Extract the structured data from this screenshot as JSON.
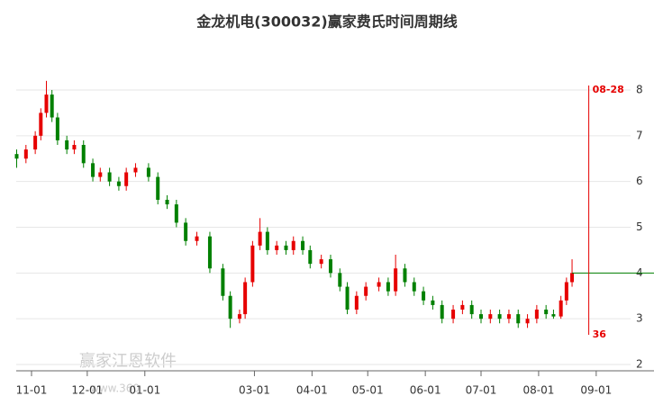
{
  "chart_data": {
    "type": "candlestick",
    "title": "金龙机电(300032)赢家费氏时间周期线",
    "x": [
      "10-24",
      "10-29",
      "11-03",
      "11-06",
      "11-09",
      "11-12",
      "11-15",
      "11-20",
      "11-24",
      "11-29",
      "12-04",
      "12-08",
      "12-13",
      "12-18",
      "12-22",
      "12-27",
      "01-03",
      "01-08",
      "01-13",
      "01-18",
      "01-23",
      "01-29",
      "02-05",
      "02-12",
      "02-16",
      "02-21",
      "02-24",
      "02-28",
      "03-04",
      "03-08",
      "03-13",
      "03-18",
      "03-22",
      "03-27",
      "03-31",
      "04-06",
      "04-11",
      "04-16",
      "04-20",
      "04-25",
      "04-30",
      "05-07",
      "05-12",
      "05-16",
      "05-21",
      "05-26",
      "05-31",
      "06-05",
      "06-10",
      "06-16",
      "06-21",
      "06-26",
      "07-01",
      "07-06",
      "07-11",
      "07-16",
      "07-21",
      "07-26",
      "07-31",
      "08-05",
      "08-09",
      "08-13",
      "08-16",
      "08-19"
    ],
    "open": [
      6.6,
      6.5,
      6.7,
      7.0,
      7.5,
      7.9,
      7.4,
      6.9,
      6.7,
      6.8,
      6.4,
      6.1,
      6.2,
      6.0,
      5.9,
      6.2,
      6.3,
      6.1,
      5.6,
      5.5,
      5.1,
      4.7,
      4.8,
      4.1,
      3.5,
      3.0,
      3.1,
      3.8,
      4.6,
      4.9,
      4.5,
      4.6,
      4.5,
      4.7,
      4.5,
      4.2,
      4.3,
      4.0,
      3.7,
      3.2,
      3.5,
      3.7,
      3.8,
      3.6,
      4.1,
      3.8,
      3.6,
      3.4,
      3.3,
      3.0,
      3.2,
      3.3,
      3.1,
      3.0,
      3.1,
      3.0,
      3.1,
      2.9,
      3.0,
      3.2,
      3.1,
      3.05,
      3.4,
      3.8
    ],
    "close": [
      6.5,
      6.7,
      7.0,
      7.5,
      7.9,
      7.4,
      6.9,
      6.7,
      6.8,
      6.4,
      6.1,
      6.2,
      6.0,
      5.9,
      6.2,
      6.3,
      6.1,
      5.6,
      5.5,
      5.1,
      4.7,
      4.8,
      4.1,
      3.5,
      3.0,
      3.1,
      3.8,
      4.6,
      4.9,
      4.5,
      4.6,
      4.5,
      4.7,
      4.5,
      4.2,
      4.3,
      4.0,
      3.7,
      3.2,
      3.5,
      3.7,
      3.8,
      3.6,
      4.1,
      3.8,
      3.6,
      3.4,
      3.3,
      3.0,
      3.2,
      3.3,
      3.1,
      3.0,
      3.1,
      3.0,
      3.1,
      2.9,
      3.0,
      3.2,
      3.1,
      3.05,
      3.4,
      3.8,
      4.0
    ],
    "high": [
      6.7,
      6.8,
      7.1,
      7.6,
      8.2,
      8.0,
      7.5,
      7.0,
      6.9,
      6.9,
      6.5,
      6.3,
      6.3,
      6.1,
      6.3,
      6.4,
      6.4,
      6.2,
      5.7,
      5.6,
      5.2,
      4.9,
      4.9,
      4.2,
      3.6,
      3.2,
      3.9,
      4.7,
      5.2,
      5.0,
      4.7,
      4.7,
      4.8,
      4.8,
      4.6,
      4.4,
      4.4,
      4.1,
      3.8,
      3.6,
      3.8,
      3.9,
      3.9,
      4.4,
      4.2,
      3.9,
      3.7,
      3.5,
      3.4,
      3.3,
      3.4,
      3.4,
      3.2,
      3.2,
      3.2,
      3.2,
      3.2,
      3.1,
      3.3,
      3.3,
      3.2,
      3.5,
      3.9,
      4.3
    ],
    "low": [
      6.3,
      6.4,
      6.6,
      6.9,
      7.4,
      7.3,
      6.8,
      6.6,
      6.6,
      6.3,
      6.0,
      6.0,
      5.9,
      5.8,
      5.8,
      6.1,
      6.0,
      5.5,
      5.4,
      5.0,
      4.6,
      4.6,
      4.0,
      3.4,
      2.8,
      2.9,
      3.0,
      3.7,
      4.5,
      4.4,
      4.4,
      4.4,
      4.4,
      4.4,
      4.1,
      4.1,
      3.9,
      3.6,
      3.1,
      3.1,
      3.4,
      3.6,
      3.5,
      3.5,
      3.7,
      3.5,
      3.3,
      3.2,
      2.9,
      2.9,
      3.1,
      3.0,
      2.9,
      2.9,
      2.9,
      2.9,
      2.8,
      2.8,
      2.9,
      3.0,
      3.0,
      3.0,
      3.3,
      3.7
    ],
    "up_color": "#e60000",
    "down_color": "#008000",
    "ylim": [
      2,
      8
    ],
    "yticks": [
      2,
      3,
      4,
      5,
      6,
      7,
      8
    ],
    "grid": true,
    "xticks": [
      "11-01",
      "12-01",
      "01-01",
      "03-01",
      "04-01",
      "05-01",
      "06-01",
      "07-01",
      "08-01",
      "09-01"
    ],
    "marker_date": "08-28",
    "marker_label": "36",
    "marker_color": "#e60000",
    "price_line": 4.0,
    "price_line_color": "#008000",
    "watermark": "赢家江恩软件",
    "watermark_url": "www.360"
  }
}
